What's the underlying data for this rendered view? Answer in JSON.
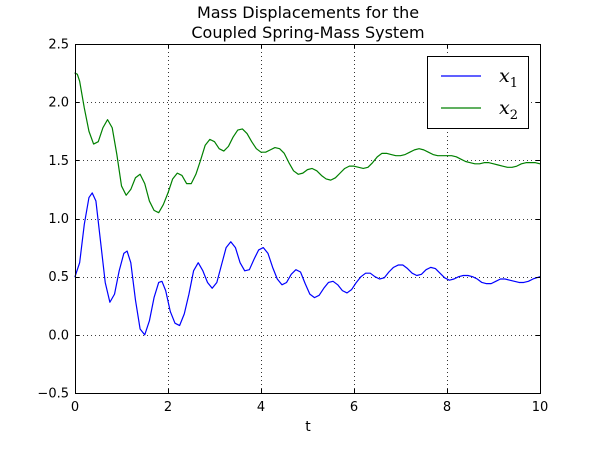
{
  "chart_data": {
    "type": "line",
    "title_lines": [
      "Mass Displacements for the",
      "Coupled Spring-Mass System"
    ],
    "xlabel": "t",
    "ylabel": "",
    "xlim": [
      0,
      10
    ],
    "ylim": [
      -0.5,
      2.5
    ],
    "x_ticks": [
      0,
      2,
      4,
      6,
      8,
      10
    ],
    "x_tick_labels": [
      "0",
      "2",
      "4",
      "6",
      "8",
      "10"
    ],
    "y_ticks": [
      -0.5,
      0.0,
      0.5,
      1.0,
      1.5,
      2.0,
      2.5
    ],
    "y_tick_labels": [
      "−0.5",
      "0.0",
      "0.5",
      "1.0",
      "1.5",
      "2.0",
      "2.5"
    ],
    "grid": true,
    "legend_position": "top-right",
    "series": [
      {
        "name": "x",
        "subscript": "1",
        "color": "#0000ff",
        "points": [
          [
            0,
            0.5
          ],
          [
            0.1,
            0.62
          ],
          [
            0.2,
            0.95
          ],
          [
            0.3,
            1.18
          ],
          [
            0.37,
            1.22
          ],
          [
            0.45,
            1.15
          ],
          [
            0.55,
            0.8
          ],
          [
            0.65,
            0.45
          ],
          [
            0.75,
            0.28
          ],
          [
            0.85,
            0.35
          ],
          [
            0.95,
            0.55
          ],
          [
            1.05,
            0.7
          ],
          [
            1.12,
            0.72
          ],
          [
            1.2,
            0.62
          ],
          [
            1.3,
            0.3
          ],
          [
            1.4,
            0.05
          ],
          [
            1.5,
            0.0
          ],
          [
            1.6,
            0.12
          ],
          [
            1.7,
            0.32
          ],
          [
            1.8,
            0.45
          ],
          [
            1.87,
            0.46
          ],
          [
            1.95,
            0.38
          ],
          [
            2.05,
            0.2
          ],
          [
            2.15,
            0.1
          ],
          [
            2.25,
            0.08
          ],
          [
            2.35,
            0.18
          ],
          [
            2.45,
            0.35
          ],
          [
            2.55,
            0.55
          ],
          [
            2.65,
            0.62
          ],
          [
            2.75,
            0.55
          ],
          [
            2.85,
            0.45
          ],
          [
            2.95,
            0.4
          ],
          [
            3.05,
            0.45
          ],
          [
            3.15,
            0.6
          ],
          [
            3.25,
            0.75
          ],
          [
            3.35,
            0.8
          ],
          [
            3.45,
            0.75
          ],
          [
            3.55,
            0.62
          ],
          [
            3.65,
            0.55
          ],
          [
            3.75,
            0.56
          ],
          [
            3.85,
            0.65
          ],
          [
            3.95,
            0.73
          ],
          [
            4.05,
            0.75
          ],
          [
            4.15,
            0.7
          ],
          [
            4.25,
            0.58
          ],
          [
            4.35,
            0.48
          ],
          [
            4.45,
            0.43
          ],
          [
            4.55,
            0.45
          ],
          [
            4.65,
            0.52
          ],
          [
            4.75,
            0.56
          ],
          [
            4.85,
            0.54
          ],
          [
            4.95,
            0.44
          ],
          [
            5.05,
            0.35
          ],
          [
            5.15,
            0.32
          ],
          [
            5.25,
            0.34
          ],
          [
            5.35,
            0.4
          ],
          [
            5.45,
            0.45
          ],
          [
            5.55,
            0.46
          ],
          [
            5.65,
            0.43
          ],
          [
            5.75,
            0.38
          ],
          [
            5.85,
            0.36
          ],
          [
            5.95,
            0.39
          ],
          [
            6.05,
            0.45
          ],
          [
            6.15,
            0.5
          ],
          [
            6.25,
            0.53
          ],
          [
            6.35,
            0.53
          ],
          [
            6.45,
            0.5
          ],
          [
            6.55,
            0.48
          ],
          [
            6.65,
            0.49
          ],
          [
            6.75,
            0.54
          ],
          [
            6.85,
            0.58
          ],
          [
            6.95,
            0.6
          ],
          [
            7.05,
            0.6
          ],
          [
            7.15,
            0.57
          ],
          [
            7.25,
            0.53
          ],
          [
            7.35,
            0.51
          ],
          [
            7.45,
            0.52
          ],
          [
            7.55,
            0.56
          ],
          [
            7.65,
            0.58
          ],
          [
            7.75,
            0.57
          ],
          [
            7.85,
            0.53
          ],
          [
            7.95,
            0.49
          ],
          [
            8.05,
            0.47
          ],
          [
            8.15,
            0.48
          ],
          [
            8.25,
            0.5
          ],
          [
            8.35,
            0.51
          ],
          [
            8.45,
            0.51
          ],
          [
            8.55,
            0.5
          ],
          [
            8.65,
            0.48
          ],
          [
            8.75,
            0.45
          ],
          [
            8.85,
            0.44
          ],
          [
            8.95,
            0.44
          ],
          [
            9.05,
            0.46
          ],
          [
            9.15,
            0.48
          ],
          [
            9.25,
            0.48
          ],
          [
            9.35,
            0.47
          ],
          [
            9.45,
            0.46
          ],
          [
            9.55,
            0.45
          ],
          [
            9.65,
            0.45
          ],
          [
            9.75,
            0.46
          ],
          [
            9.85,
            0.48
          ],
          [
            10.0,
            0.5
          ]
        ]
      },
      {
        "name": "x",
        "subscript": "2",
        "color": "#008000",
        "points": [
          [
            0,
            2.25
          ],
          [
            0.05,
            2.24
          ],
          [
            0.1,
            2.18
          ],
          [
            0.2,
            1.95
          ],
          [
            0.3,
            1.75
          ],
          [
            0.4,
            1.64
          ],
          [
            0.5,
            1.66
          ],
          [
            0.6,
            1.78
          ],
          [
            0.7,
            1.85
          ],
          [
            0.8,
            1.78
          ],
          [
            0.9,
            1.55
          ],
          [
            1.0,
            1.28
          ],
          [
            1.1,
            1.2
          ],
          [
            1.2,
            1.25
          ],
          [
            1.3,
            1.35
          ],
          [
            1.4,
            1.38
          ],
          [
            1.5,
            1.3
          ],
          [
            1.6,
            1.15
          ],
          [
            1.7,
            1.07
          ],
          [
            1.8,
            1.05
          ],
          [
            1.9,
            1.12
          ],
          [
            2.0,
            1.22
          ],
          [
            2.1,
            1.34
          ],
          [
            2.2,
            1.39
          ],
          [
            2.3,
            1.37
          ],
          [
            2.4,
            1.3
          ],
          [
            2.5,
            1.3
          ],
          [
            2.6,
            1.38
          ],
          [
            2.7,
            1.5
          ],
          [
            2.8,
            1.63
          ],
          [
            2.9,
            1.68
          ],
          [
            3.0,
            1.66
          ],
          [
            3.1,
            1.6
          ],
          [
            3.2,
            1.58
          ],
          [
            3.3,
            1.62
          ],
          [
            3.4,
            1.7
          ],
          [
            3.5,
            1.76
          ],
          [
            3.6,
            1.77
          ],
          [
            3.7,
            1.73
          ],
          [
            3.8,
            1.66
          ],
          [
            3.9,
            1.6
          ],
          [
            4.0,
            1.57
          ],
          [
            4.1,
            1.57
          ],
          [
            4.2,
            1.59
          ],
          [
            4.3,
            1.61
          ],
          [
            4.4,
            1.6
          ],
          [
            4.5,
            1.56
          ],
          [
            4.6,
            1.48
          ],
          [
            4.7,
            1.41
          ],
          [
            4.8,
            1.38
          ],
          [
            4.9,
            1.39
          ],
          [
            5.0,
            1.42
          ],
          [
            5.1,
            1.43
          ],
          [
            5.2,
            1.41
          ],
          [
            5.3,
            1.37
          ],
          [
            5.4,
            1.34
          ],
          [
            5.5,
            1.33
          ],
          [
            5.6,
            1.35
          ],
          [
            5.7,
            1.39
          ],
          [
            5.8,
            1.43
          ],
          [
            5.9,
            1.45
          ],
          [
            6.0,
            1.45
          ],
          [
            6.1,
            1.44
          ],
          [
            6.2,
            1.43
          ],
          [
            6.3,
            1.44
          ],
          [
            6.4,
            1.48
          ],
          [
            6.5,
            1.53
          ],
          [
            6.6,
            1.56
          ],
          [
            6.7,
            1.56
          ],
          [
            6.8,
            1.55
          ],
          [
            6.9,
            1.54
          ],
          [
            7.0,
            1.54
          ],
          [
            7.1,
            1.55
          ],
          [
            7.2,
            1.57
          ],
          [
            7.3,
            1.59
          ],
          [
            7.4,
            1.6
          ],
          [
            7.5,
            1.59
          ],
          [
            7.6,
            1.57
          ],
          [
            7.7,
            1.55
          ],
          [
            7.8,
            1.54
          ],
          [
            7.9,
            1.54
          ],
          [
            8.0,
            1.54
          ],
          [
            8.1,
            1.54
          ],
          [
            8.2,
            1.53
          ],
          [
            8.3,
            1.51
          ],
          [
            8.4,
            1.49
          ],
          [
            8.5,
            1.48
          ],
          [
            8.6,
            1.47
          ],
          [
            8.7,
            1.47
          ],
          [
            8.8,
            1.48
          ],
          [
            8.9,
            1.48
          ],
          [
            9.0,
            1.47
          ],
          [
            9.1,
            1.46
          ],
          [
            9.2,
            1.45
          ],
          [
            9.3,
            1.44
          ],
          [
            9.4,
            1.44
          ],
          [
            9.5,
            1.45
          ],
          [
            9.6,
            1.47
          ],
          [
            9.7,
            1.48
          ],
          [
            9.8,
            1.48
          ],
          [
            9.9,
            1.48
          ],
          [
            10.0,
            1.47
          ]
        ]
      }
    ]
  }
}
